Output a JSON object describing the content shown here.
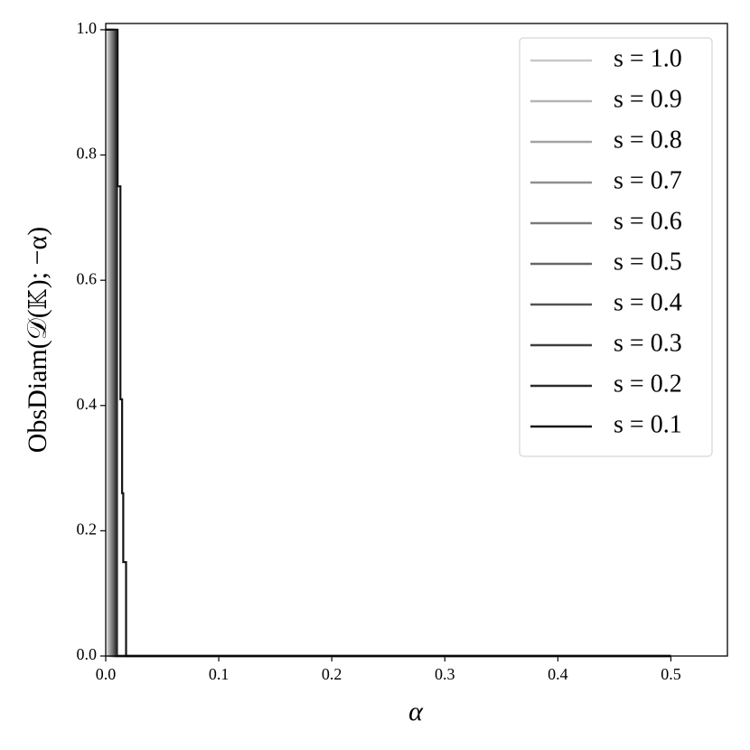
{
  "chart_data": {
    "type": "line",
    "xlabel": "α",
    "ylabel": "ObsDiam(𝒟(𝕂); −α)",
    "xlim": [
      0,
      0.55
    ],
    "ylim": [
      0,
      1.01
    ],
    "xticks": [
      {
        "value": 0,
        "label": "0.0"
      },
      0.1,
      0.2,
      0.3,
      0.4,
      0.5
    ],
    "yticks": [
      {
        "value": 0,
        "label": "0.0"
      },
      0.2,
      0.4,
      0.6,
      0.8,
      {
        "value": 1,
        "label": "1.0"
      }
    ],
    "legend": "upper right",
    "series": [
      {
        "name": "s = 1.0",
        "color": "#c8c8c8",
        "x": [
          0,
          0.002,
          0.002,
          0.5
        ],
        "values": [
          1,
          1,
          0,
          0
        ]
      },
      {
        "name": "s = 0.9",
        "color": "#b4b4b4",
        "x": [
          0,
          0.003,
          0.003,
          0.5
        ],
        "values": [
          1,
          1,
          0,
          0
        ]
      },
      {
        "name": "s = 0.8",
        "color": "#a2a2a2",
        "x": [
          0,
          0.004,
          0.004,
          0.5
        ],
        "values": [
          1,
          1,
          0,
          0
        ]
      },
      {
        "name": "s = 0.7",
        "color": "#8e8e8e",
        "x": [
          0,
          0.005,
          0.005,
          0.5
        ],
        "values": [
          1,
          1,
          0,
          0
        ]
      },
      {
        "name": "s = 0.6",
        "color": "#7a7a7a",
        "x": [
          0,
          0.006,
          0.006,
          0.5
        ],
        "values": [
          1,
          1,
          0,
          0
        ]
      },
      {
        "name": "s = 0.5",
        "color": "#666666",
        "x": [
          0,
          0.007,
          0.007,
          0.5
        ],
        "values": [
          1,
          1,
          0,
          0
        ]
      },
      {
        "name": "s = 0.4",
        "color": "#525252",
        "x": [
          0,
          0.008,
          0.008,
          0.5
        ],
        "values": [
          1,
          1,
          0,
          0
        ]
      },
      {
        "name": "s = 0.3",
        "color": "#3e3e3e",
        "x": [
          0,
          0.009,
          0.009,
          0.5
        ],
        "values": [
          1,
          1,
          0,
          0
        ]
      },
      {
        "name": "s = 0.2",
        "color": "#2a2a2a",
        "x": [
          0,
          0.01,
          0.01,
          0.5
        ],
        "values": [
          1,
          1,
          0,
          0
        ]
      },
      {
        "name": "s = 0.1",
        "color": "#141414",
        "x": [
          0,
          0.0105,
          0.0105,
          0.013,
          0.013,
          0.0145,
          0.0145,
          0.0155,
          0.0155,
          0.018,
          0.018,
          0.5
        ],
        "values": [
          1,
          1,
          0.75,
          0.75,
          0.41,
          0.41,
          0.26,
          0.26,
          0.15,
          0.15,
          0,
          0
        ]
      }
    ]
  }
}
